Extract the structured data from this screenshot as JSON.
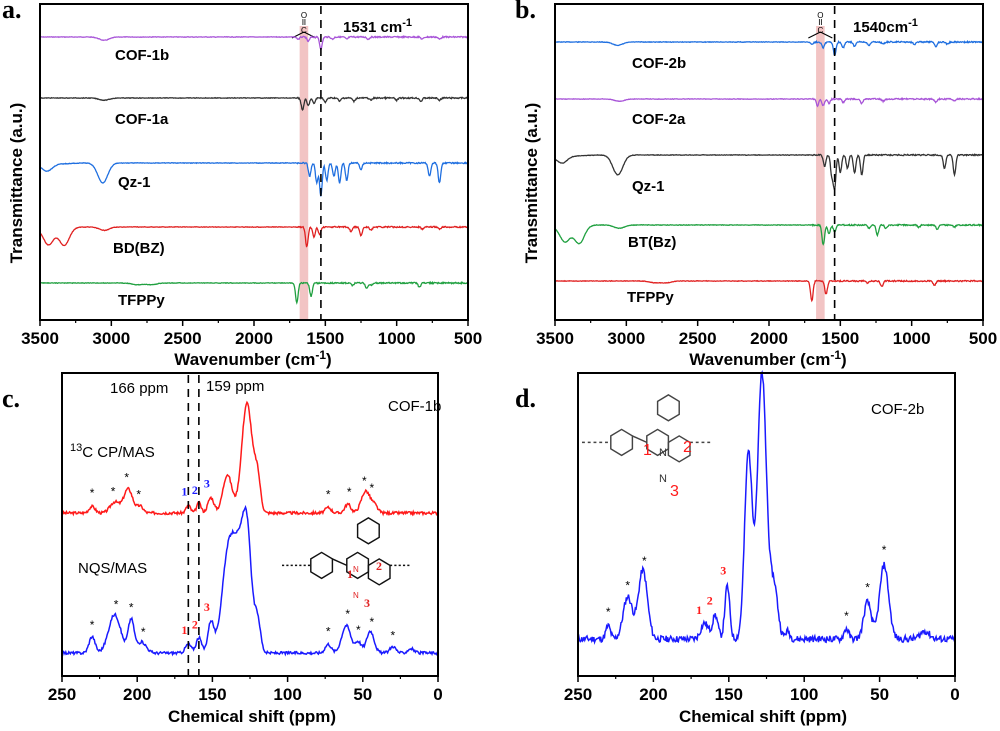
{
  "chart_data": [
    {
      "panel": "a.",
      "type": "line",
      "title": "",
      "xlabel": "Wavenumber (cm-1)",
      "xlabel_main": "Wavenumber (cm",
      "xlabel_sup": "-1",
      "xlabel_close": ")",
      "ylabel": "Transmittance (a.u.)",
      "xlim": [
        3500,
        500
      ],
      "x_ticks": [
        3500,
        3000,
        2500,
        2000,
        1500,
        1000,
        500
      ],
      "highlight_band": {
        "from": 1680,
        "to": 1620,
        "color": "#f2c4c4",
        "label": "C=O"
      },
      "dashed_line": {
        "x": 1531,
        "label": "1531 cm",
        "label_sup": "-1"
      },
      "series": [
        {
          "name": "COF-1b",
          "color": "#a855d8",
          "offset": 4,
          "dips": [
            [
              3050,
              0.15
            ],
            [
              1690,
              0.1
            ],
            [
              1620,
              0.2
            ],
            [
              1531,
              0.55
            ],
            [
              1450,
              0.1
            ],
            [
              1350,
              0.1
            ],
            [
              1200,
              0.1
            ],
            [
              820,
              0.1
            ],
            [
              700,
              0.1
            ]
          ]
        },
        {
          "name": "COF-1a",
          "color": "#333333",
          "offset": 3,
          "dips": [
            [
              3050,
              0.1
            ],
            [
              1660,
              0.55
            ],
            [
              1620,
              0.35
            ],
            [
              1580,
              0.25
            ],
            [
              1500,
              0.2
            ],
            [
              1400,
              0.15
            ],
            [
              1300,
              0.15
            ],
            [
              1180,
              0.1
            ],
            [
              1000,
              0.1
            ],
            [
              830,
              0.15
            ],
            [
              700,
              0.1
            ]
          ]
        },
        {
          "name": "Qz-1",
          "color": "#1f6fe0",
          "offset": 2,
          "dips": [
            [
              3450,
              0.3
            ],
            [
              3060,
              0.9
            ],
            [
              1610,
              0.6
            ],
            [
              1560,
              0.9
            ],
            [
              1531,
              1.5
            ],
            [
              1490,
              0.8
            ],
            [
              1440,
              0.6
            ],
            [
              1400,
              0.9
            ],
            [
              1350,
              0.8
            ],
            [
              1250,
              0.3
            ],
            [
              770,
              0.6
            ],
            [
              700,
              0.9
            ]
          ]
        },
        {
          "name": "BD(BZ)",
          "color": "#e02020",
          "offset": 1,
          "dips": [
            [
              3440,
              0.75
            ],
            [
              3330,
              0.8
            ],
            [
              3050,
              0.15
            ],
            [
              1630,
              0.9
            ],
            [
              1580,
              0.45
            ],
            [
              1540,
              0.35
            ],
            [
              1320,
              0.2
            ],
            [
              1250,
              0.4
            ],
            [
              1180,
              0.15
            ],
            [
              820,
              0.1
            ],
            [
              700,
              0.1
            ]
          ]
        },
        {
          "name": "TFPPy",
          "color": "#20a040",
          "offset": 0,
          "dips": [
            [
              2820,
              0.08
            ],
            [
              2720,
              0.08
            ],
            [
              1700,
              0.9
            ],
            [
              1600,
              0.6
            ],
            [
              1310,
              0.1
            ],
            [
              1210,
              0.25
            ],
            [
              1180,
              0.1
            ],
            [
              840,
              0.2
            ]
          ]
        }
      ]
    },
    {
      "panel": "b.",
      "type": "line",
      "title": "",
      "xlabel": "Wavenumber (cm-1)",
      "xlabel_main": "Wavenumber (cm",
      "xlabel_sup": "-1",
      "xlabel_close": ")",
      "ylabel": "Transmittance (a.u.)",
      "xlim": [
        3500,
        500
      ],
      "x_ticks": [
        3500,
        3000,
        2500,
        2000,
        1500,
        1000,
        500
      ],
      "highlight_band": {
        "from": 1670,
        "to": 1610,
        "color": "#f2c4c4",
        "label": "C=O"
      },
      "dashed_line": {
        "x": 1540,
        "label": "1540cm",
        "label_sup": "-1"
      },
      "series": [
        {
          "name": "COF-2b",
          "color": "#1f6fe0",
          "offset": 4,
          "dips": [
            [
              3060,
              0.15
            ],
            [
              1700,
              0.1
            ],
            [
              1620,
              0.25
            ],
            [
              1540,
              0.6
            ],
            [
              1480,
              0.25
            ],
            [
              1400,
              0.2
            ],
            [
              1300,
              0.15
            ],
            [
              1200,
              0.1
            ],
            [
              980,
              0.1
            ],
            [
              830,
              0.2
            ],
            [
              750,
              0.1
            ]
          ]
        },
        {
          "name": "COF-2a",
          "color": "#a855d8",
          "offset": 3,
          "dips": [
            [
              3050,
              0.1
            ],
            [
              1660,
              0.3
            ],
            [
              1620,
              0.3
            ],
            [
              1580,
              0.2
            ],
            [
              1480,
              0.15
            ],
            [
              1350,
              0.2
            ],
            [
              1200,
              0.1
            ],
            [
              830,
              0.15
            ],
            [
              700,
              0.1
            ]
          ]
        },
        {
          "name": "Qz-1",
          "color": "#333333",
          "offset": 2,
          "dips": [
            [
              3450,
              0.3
            ],
            [
              3060,
              0.9
            ],
            [
              1610,
              0.5
            ],
            [
              1560,
              0.9
            ],
            [
              1540,
              1.5
            ],
            [
              1500,
              0.8
            ],
            [
              1450,
              0.6
            ],
            [
              1400,
              0.8
            ],
            [
              1350,
              0.9
            ],
            [
              770,
              0.6
            ],
            [
              700,
              0.9
            ]
          ]
        },
        {
          "name": "BT(Bz)",
          "color": "#20a040",
          "offset": 1,
          "dips": [
            [
              3430,
              0.7
            ],
            [
              3330,
              0.8
            ],
            [
              3050,
              0.15
            ],
            [
              1620,
              0.9
            ],
            [
              1580,
              0.4
            ],
            [
              1540,
              0.3
            ],
            [
              1300,
              0.15
            ],
            [
              1240,
              0.45
            ],
            [
              1180,
              0.15
            ],
            [
              950,
              0.1
            ],
            [
              820,
              0.2
            ],
            [
              700,
              0.1
            ]
          ]
        },
        {
          "name": "TFPPy",
          "color": "#e02020",
          "offset": 0,
          "dips": [
            [
              2800,
              0.08
            ],
            [
              2720,
              0.08
            ],
            [
              1700,
              0.9
            ],
            [
              1600,
              0.6
            ],
            [
              1310,
              0.1
            ],
            [
              1210,
              0.25
            ],
            [
              840,
              0.2
            ]
          ]
        }
      ]
    },
    {
      "panel": "c.",
      "type": "line",
      "title": "COF-1b",
      "xlabel": "Chemical shift (ppm)",
      "ylabel": "",
      "xlim": [
        250,
        0
      ],
      "x_ticks": [
        250,
        200,
        150,
        100,
        50,
        0
      ],
      "dashed_lines": [
        {
          "x": 166,
          "label": "166 ppm"
        },
        {
          "x": 159,
          "label": "159 ppm"
        }
      ],
      "series": [
        {
          "name": "13C CP/MAS",
          "name_sup": "13",
          "name_rest": "C CP/MAS",
          "color": "#ff1a1a",
          "offset": 1,
          "peaks": [
            [
              230,
              0.06,
              2
            ],
            [
              215,
              0.1,
              3
            ],
            [
              206,
              0.22,
              3
            ],
            [
              198,
              0.06,
              2
            ],
            [
              166,
              0.07,
              1.5
            ],
            [
              159,
              0.09,
              1.5
            ],
            [
              151,
              0.14,
              2
            ],
            [
              140,
              0.35,
              3
            ],
            [
              127,
              1.0,
              3.5
            ],
            [
              120,
              0.3,
              2
            ],
            [
              73,
              0.05,
              2
            ],
            [
              60,
              0.08,
              2
            ],
            [
              48,
              0.2,
              3
            ],
            [
              42,
              0.06,
              2
            ]
          ],
          "peak_labels": [
            {
              "x": 166,
              "text": "1"
            },
            {
              "x": 159,
              "text": "2"
            },
            {
              "x": 151,
              "text": "3"
            }
          ],
          "peak_label_color": "#1a1aff",
          "spinning_sidebands": [
            230,
            216,
            207,
            199,
            73,
            59,
            49,
            44
          ]
        },
        {
          "name": "NQS/MAS",
          "color": "#1a1aff",
          "offset": 0,
          "peaks": [
            [
              230,
              0.15,
              2
            ],
            [
              215,
              0.35,
              4
            ],
            [
              204,
              0.3,
              2
            ],
            [
              197,
              0.1,
              3
            ],
            [
              166,
              0.08,
              2
            ],
            [
              159,
              0.14,
              1.8
            ],
            [
              151,
              0.28,
              2
            ],
            [
              140,
              0.8,
              4
            ],
            [
              133,
              0.8,
              4
            ],
            [
              127,
              1.0,
              3
            ],
            [
              120,
              0.3,
              2
            ],
            [
              73,
              0.08,
              2
            ],
            [
              61,
              0.25,
              3
            ],
            [
              53,
              0.1,
              2
            ],
            [
              45,
              0.2,
              2.5
            ],
            [
              30,
              0.06,
              2
            ],
            [
              18,
              0.04,
              2
            ]
          ],
          "peak_labels": [
            {
              "x": 166,
              "text": "1"
            },
            {
              "x": 159,
              "text": "2"
            },
            {
              "x": 151,
              "text": "3"
            }
          ],
          "peak_label_color": "#ff1a1a",
          "spinning_sidebands": [
            230,
            214,
            204,
            196,
            73,
            60,
            53,
            44,
            30
          ]
        }
      ],
      "structure_labels": [
        "1",
        "2",
        "3"
      ],
      "structure_atoms": [
        "N",
        "N"
      ]
    },
    {
      "panel": "d.",
      "type": "line",
      "title": "COF-2b",
      "xlabel": "Chemical shift (ppm)",
      "ylabel": "",
      "xlim": [
        250,
        0
      ],
      "x_ticks": [
        250,
        200,
        150,
        100,
        50,
        0
      ],
      "series": [
        {
          "name": "COF-2b",
          "color": "#1a1aff",
          "offset": 0,
          "peaks": [
            [
              230,
              0.05,
              1.5
            ],
            [
              217,
              0.16,
              3
            ],
            [
              207,
              0.26,
              3
            ],
            [
              166,
              0.06,
              2.5
            ],
            [
              159,
              0.09,
              1.8
            ],
            [
              151,
              0.2,
              1.6
            ],
            [
              137,
              0.7,
              2.5
            ],
            [
              128,
              1.0,
              3
            ],
            [
              120,
              0.2,
              2.5
            ],
            [
              111,
              0.03,
              1.5
            ],
            [
              72,
              0.04,
              1.5
            ],
            [
              58,
              0.14,
              2.5
            ],
            [
              47,
              0.28,
              3
            ],
            [
              20,
              0.03,
              3
            ]
          ],
          "peak_labels": [
            {
              "x": 167,
              "text": "1"
            },
            {
              "x": 160,
              "text": "2"
            },
            {
              "x": 151,
              "text": "3"
            }
          ],
          "peak_label_color": "#ff1a1a",
          "spinning_sidebands": [
            230,
            217,
            206,
            72,
            58,
            47
          ]
        }
      ],
      "structure_labels": [
        "1",
        "2",
        "3"
      ],
      "structure_atoms": [
        "N",
        "N"
      ]
    }
  ]
}
